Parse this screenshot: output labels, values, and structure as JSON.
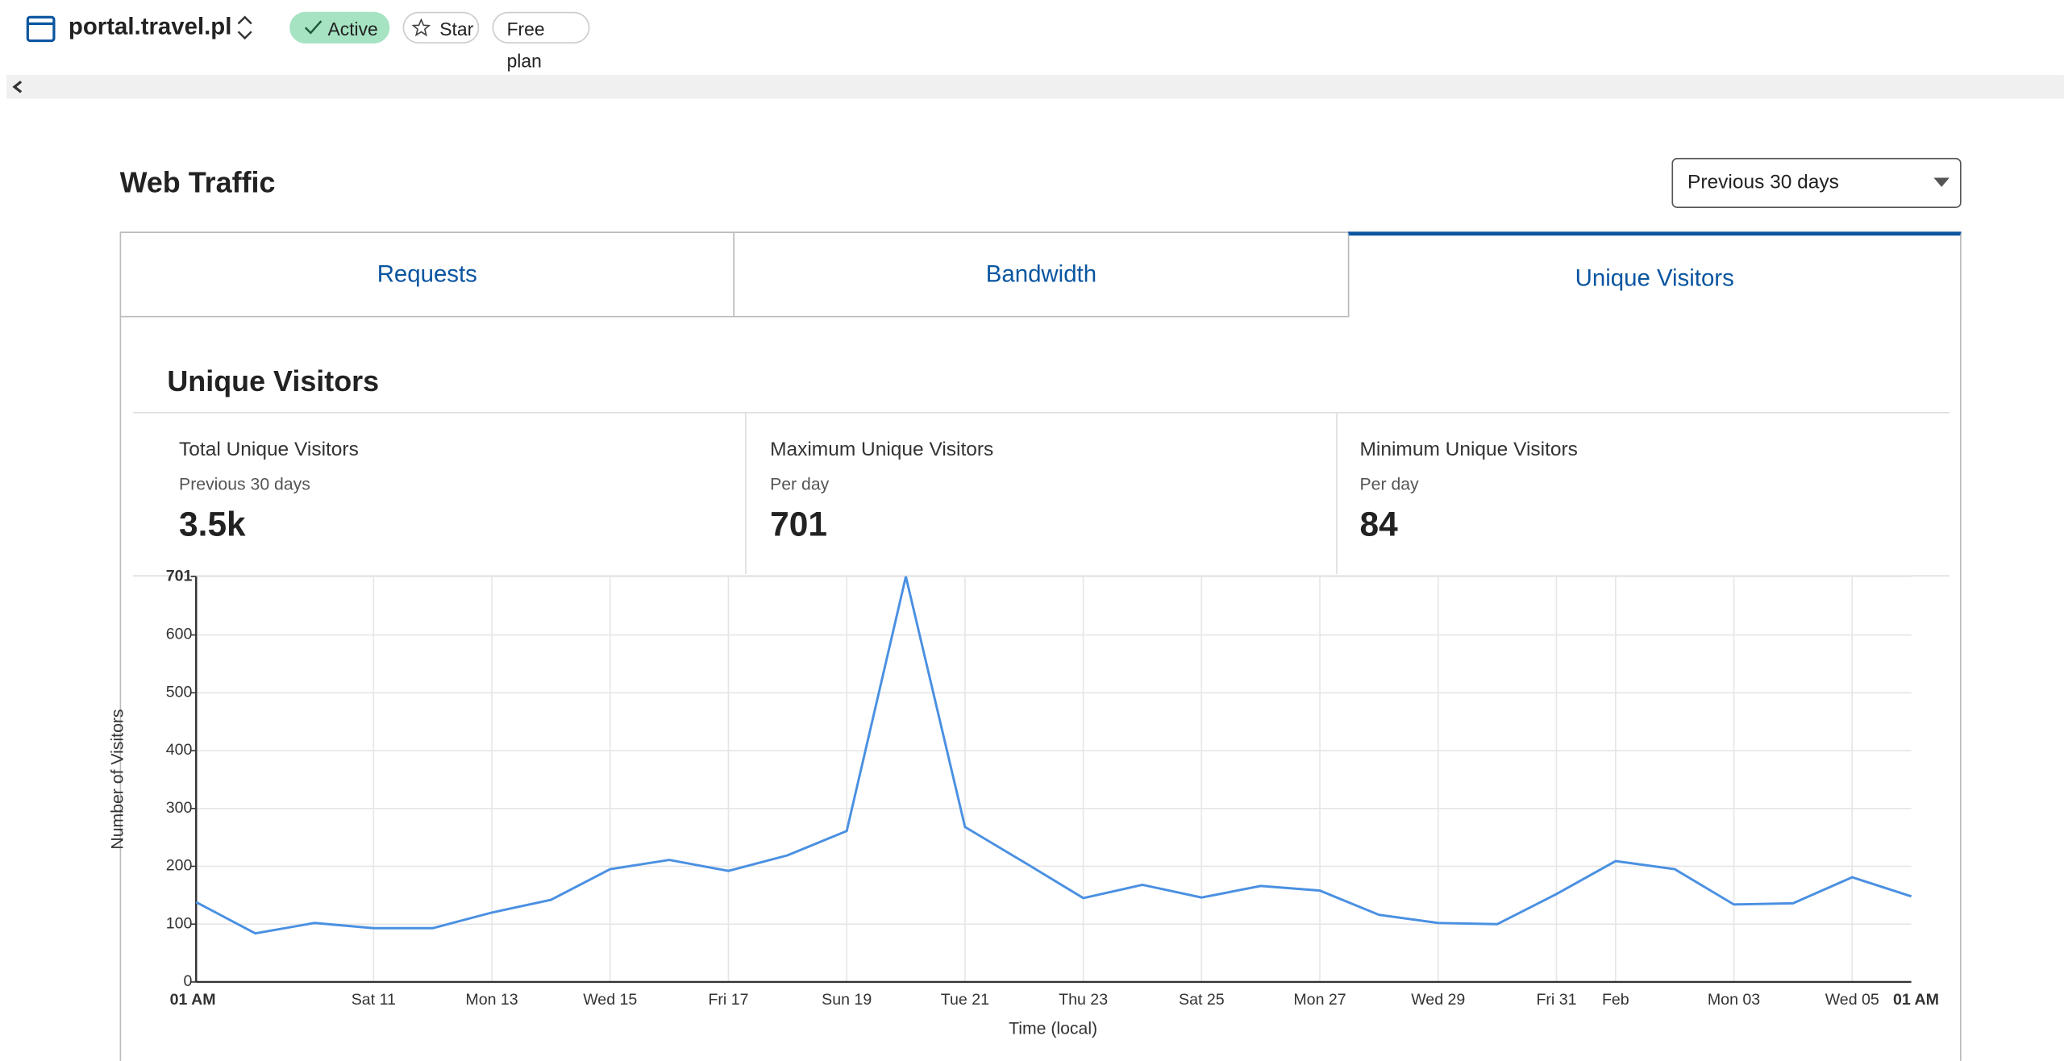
{
  "header": {
    "site": "portal.travel.pl",
    "status": "Active",
    "star": "Star",
    "plan": "Free plan"
  },
  "section_title": "Web Traffic",
  "range_select": "Previous 30 days",
  "tabs": [
    "Requests",
    "Bandwidth",
    "Unique Visitors"
  ],
  "panel_title": "Unique Visitors",
  "stats": [
    {
      "label": "Total Unique Visitors",
      "sub": "Previous 30 days",
      "value": "3.5k"
    },
    {
      "label": "Maximum Unique Visitors",
      "sub": "Per day",
      "value": "701"
    },
    {
      "label": "Minimum Unique Visitors",
      "sub": "Per day",
      "value": "84"
    }
  ],
  "chart_data": {
    "type": "line",
    "x_label": "Time (local)",
    "y_label": "Number of Visitors",
    "categories": [
      "01 AM",
      null,
      null,
      "Sat 11",
      null,
      "Mon 13",
      null,
      "Wed 15",
      null,
      "Fri 17",
      null,
      "Sun 19",
      null,
      "Tue 21",
      null,
      "Thu 23",
      null,
      "Sat 25",
      null,
      "Mon 27",
      null,
      "Wed 29",
      null,
      "Fri 31",
      "Feb",
      null,
      "Mon 03",
      null,
      "Wed 05",
      "01 AM"
    ],
    "values": [
      138,
      84,
      102,
      93,
      93,
      120,
      142,
      195,
      211,
      192,
      219,
      261,
      701,
      268,
      207,
      145,
      168,
      146,
      166,
      158,
      116,
      102,
      100,
      152,
      209,
      195,
      134,
      136,
      181,
      148
    ],
    "color": "#4a90e2",
    "ylim": [
      0,
      701
    ],
    "yticks": [
      0,
      100,
      200,
      300,
      400,
      500,
      600,
      701
    ],
    "grid": true
  }
}
